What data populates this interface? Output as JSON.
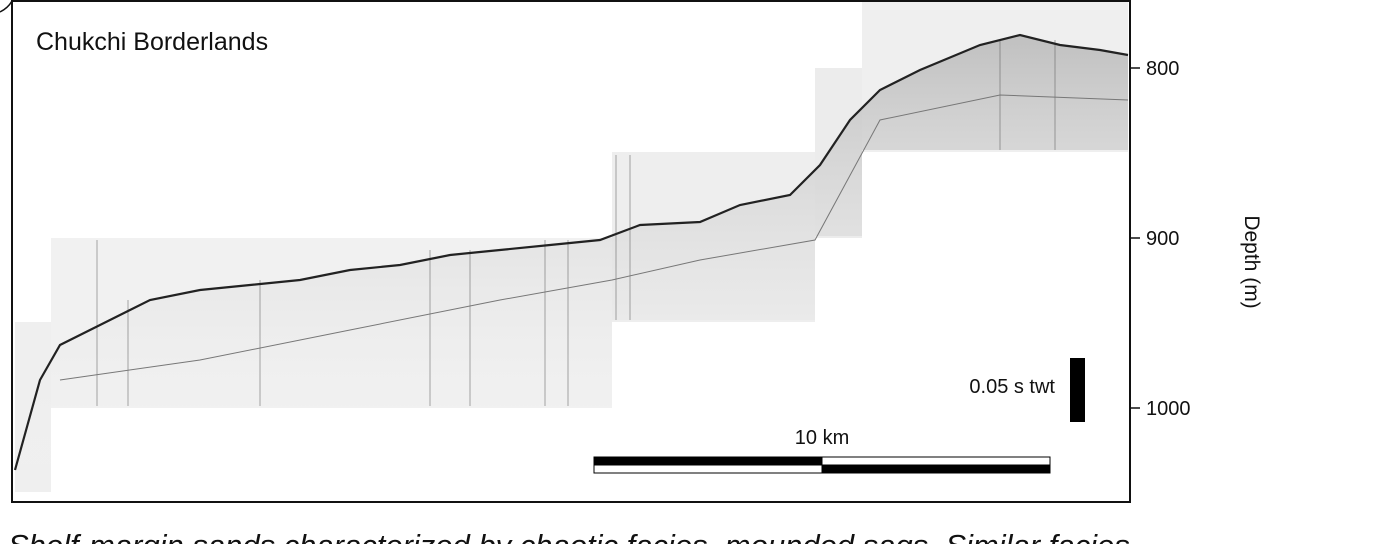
{
  "figure": {
    "label": "Chukchi Borderlands",
    "axis": {
      "title": "Depth (m)",
      "ticks": [
        800,
        900,
        1000
      ]
    },
    "scale_bars": {
      "vertical": "0.05 s twt",
      "horizontal": "10 km"
    },
    "caption": "Shelf-margin sands characterized by chaotic facies, mounded sags. Similar facies"
  }
}
